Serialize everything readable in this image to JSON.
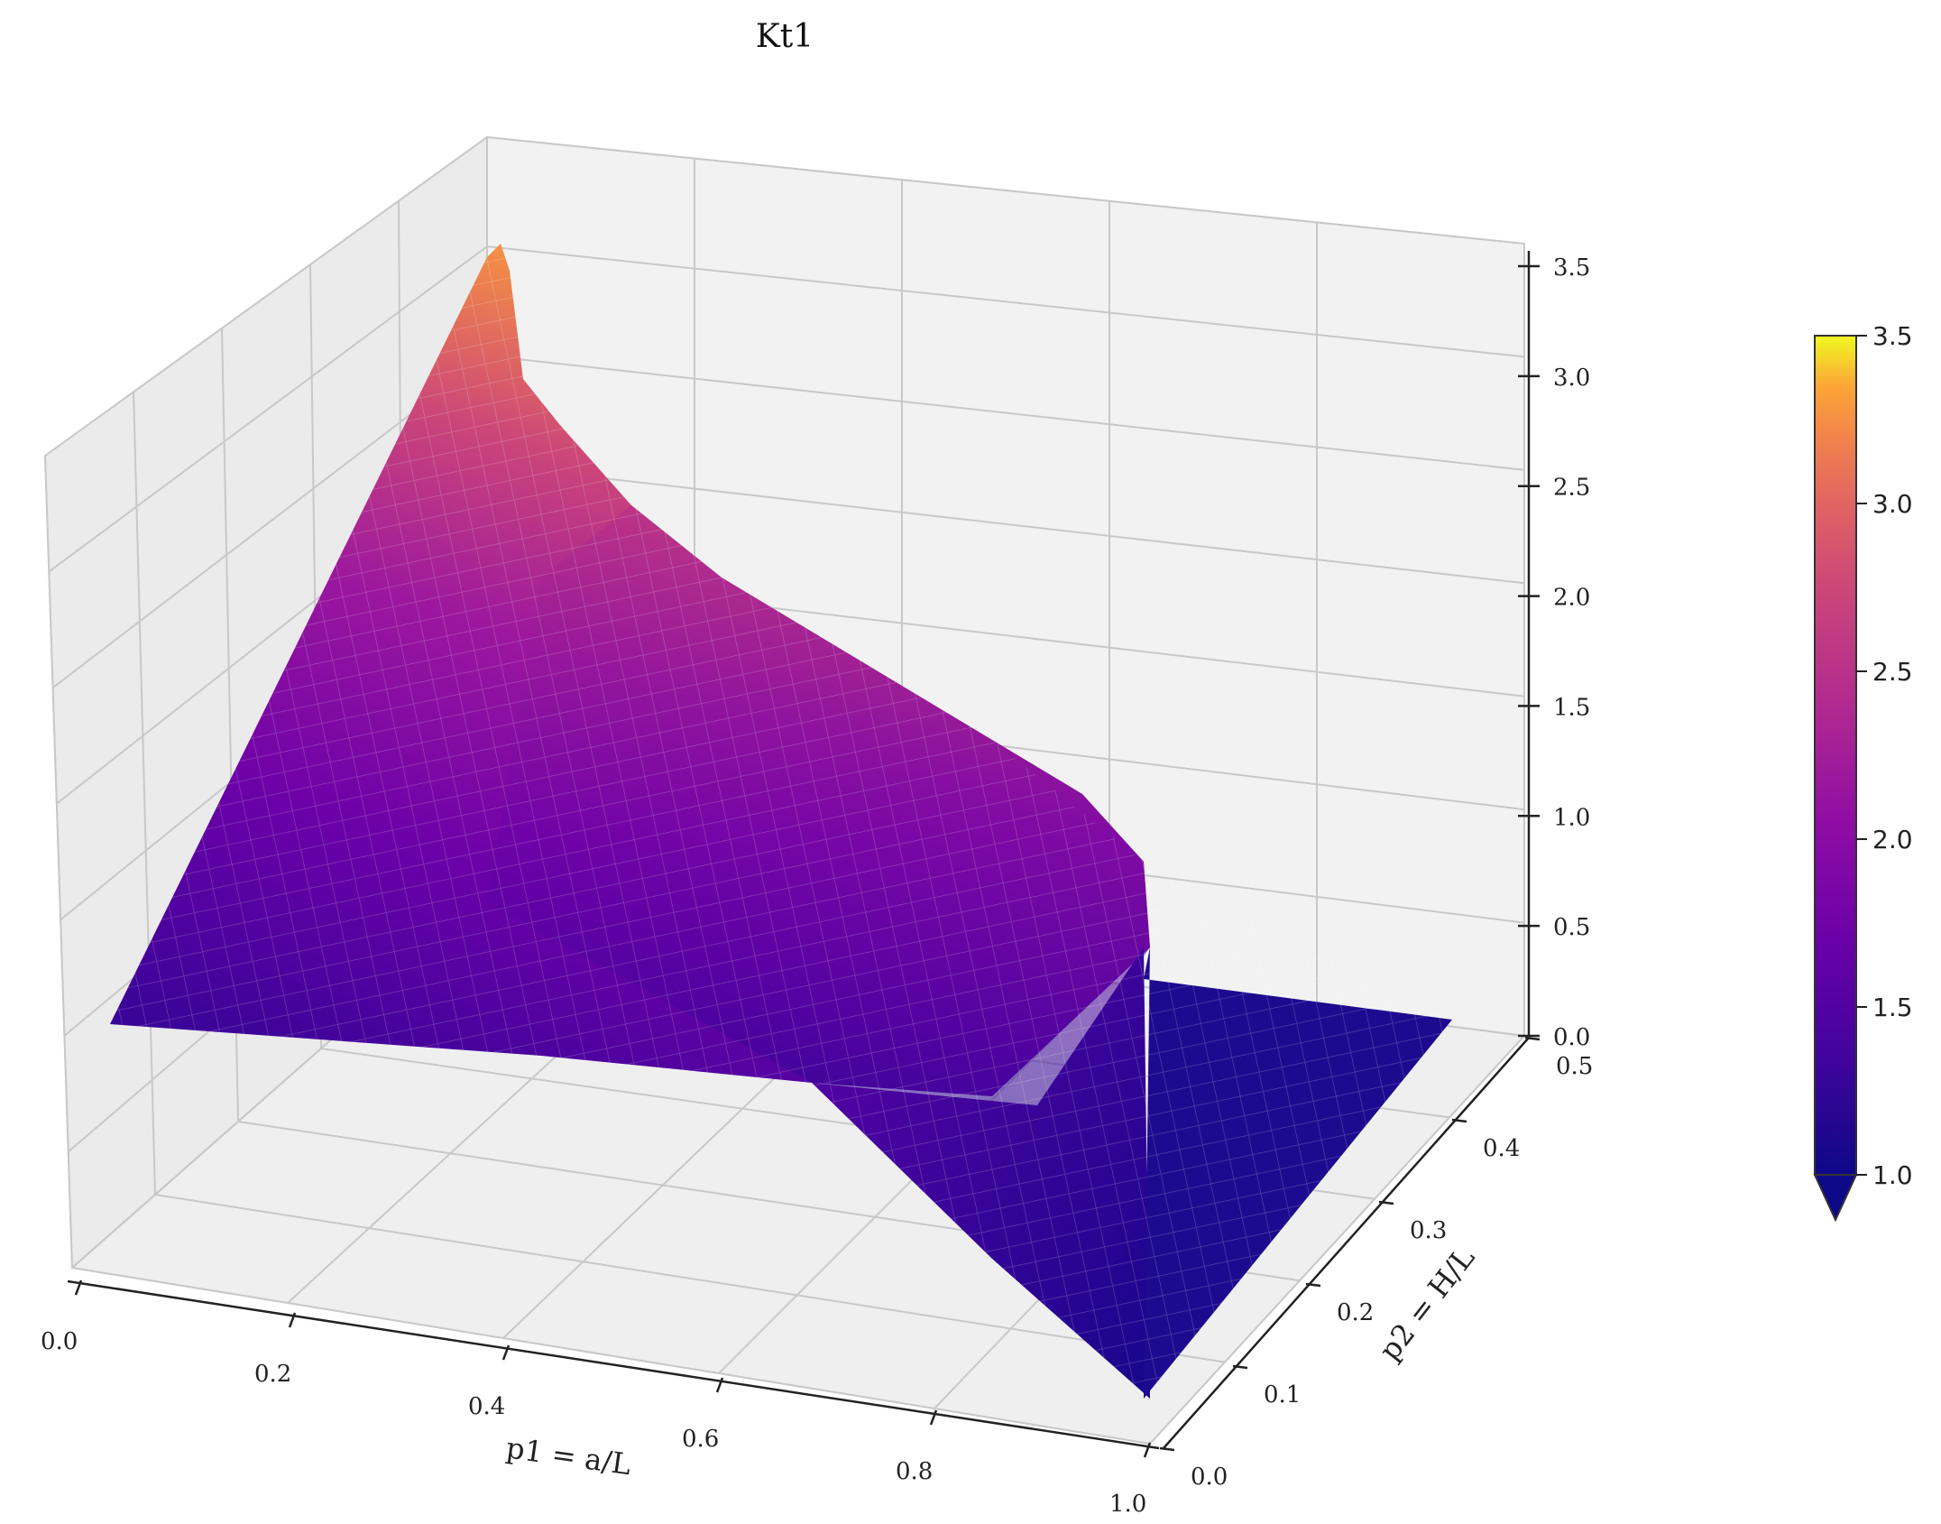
{
  "chart_data": {
    "type": "surface3d",
    "title": "Kt1",
    "xlabel": "p1 = a/L",
    "ylabel": "p2 = H/L",
    "zlabel": "",
    "xlim": [
      0.0,
      1.0
    ],
    "ylim": [
      0.0,
      0.5
    ],
    "zlim": [
      0.0,
      3.5
    ],
    "x_ticks": [
      "0.0",
      "0.2",
      "0.4",
      "0.6",
      "0.8",
      "1.0"
    ],
    "y_ticks": [
      "0.0",
      "0.1",
      "0.2",
      "0.3",
      "0.4",
      "0.5"
    ],
    "z_ticks": [
      "0.0",
      "0.5",
      "1.0",
      "1.5",
      "2.0",
      "2.5",
      "3.0",
      "3.5"
    ],
    "colormap": "plasma",
    "colorbar": {
      "range": [
        1.0,
        3.5
      ],
      "ticks": [
        "1.0",
        "1.5",
        "2.0",
        "2.5",
        "3.0",
        "3.5"
      ],
      "extend": "min"
    },
    "surface_description_points": [
      {
        "p1": 0.0,
        "p2": 0.5,
        "kt1": 3.5
      },
      {
        "p1": 0.0,
        "p2": 0.25,
        "kt1": 1.9
      },
      {
        "p1": 0.0,
        "p2": 0.0,
        "kt1": 1.0
      },
      {
        "p1": 0.5,
        "p2": 0.5,
        "kt1": 2.3
      },
      {
        "p1": 0.9,
        "p2": 0.5,
        "kt1": 1.1
      },
      {
        "p1": 1.0,
        "p2": 0.0,
        "kt1": 1.0
      }
    ],
    "grid": true
  }
}
